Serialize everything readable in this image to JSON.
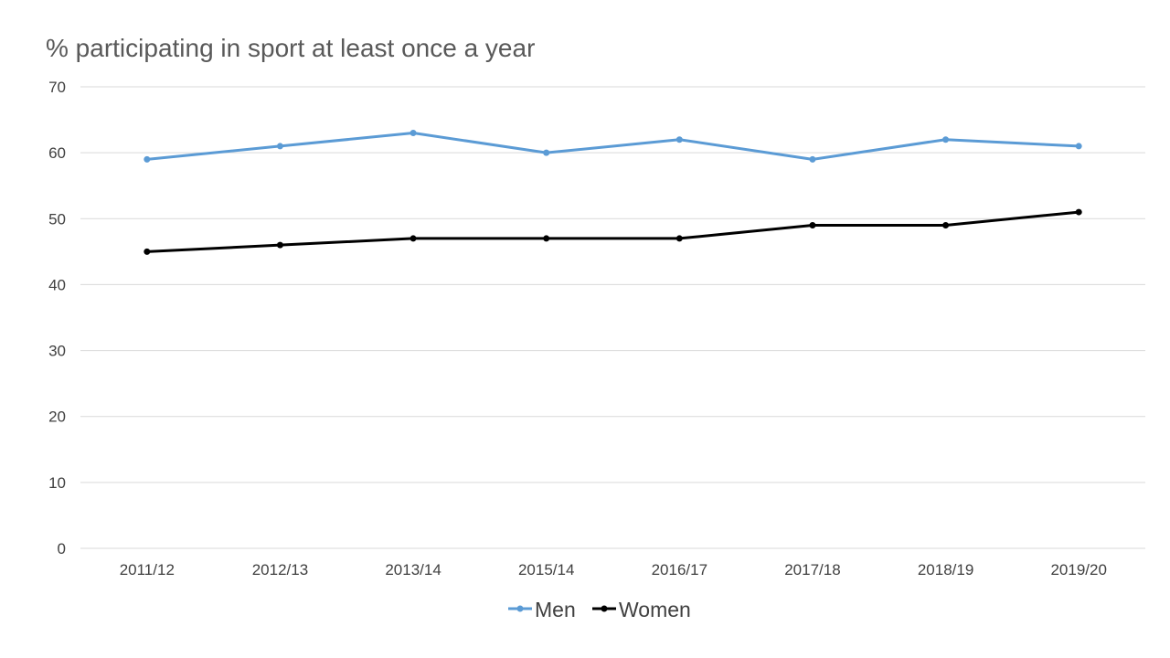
{
  "chart_data": {
    "type": "line",
    "title": "% participating in sport at least once a year",
    "xlabel": "",
    "ylabel": "",
    "categories": [
      "2011/12",
      "2012/13",
      "2013/14",
      "2015/14",
      "2016/17",
      "2017/18",
      "2018/19",
      "2019/20"
    ],
    "ylim": [
      0,
      70
    ],
    "yticks": [
      0,
      10,
      20,
      30,
      40,
      50,
      60,
      70
    ],
    "grid": true,
    "legend_position": "bottom",
    "series": [
      {
        "name": "Men",
        "color": "#5b9bd5",
        "values": [
          59,
          61,
          63,
          60,
          62,
          59,
          62,
          61
        ]
      },
      {
        "name": "Women",
        "color": "#000000",
        "values": [
          45,
          46,
          47,
          47,
          47,
          49,
          49,
          51
        ]
      }
    ]
  }
}
